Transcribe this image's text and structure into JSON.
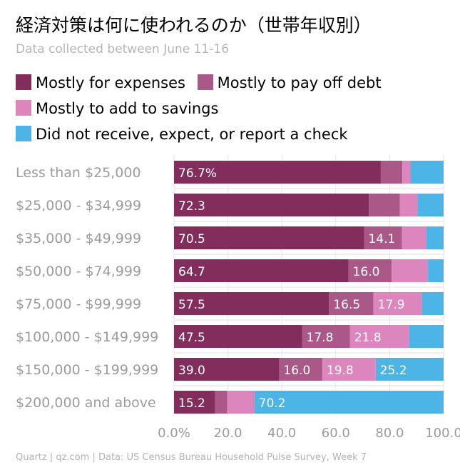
{
  "title": "経済対策は何に使われるのか（世帯年収別）",
  "subtitle": "Data collected between June 11-16",
  "footer": "Quartz | qz.com | Data: US Census Bureau Household Pulse Survey, Week 7",
  "chart_data": {
    "type": "bar",
    "orientation": "horizontal",
    "stacked": true,
    "title": "経済対策は何に使われるのか（世帯年収別）",
    "xlabel": "",
    "ylabel": "",
    "xlim": [
      0,
      100
    ],
    "x_ticks": [
      0,
      20,
      40,
      60,
      80,
      100
    ],
    "x_tick_labels": [
      "0.0%",
      "20.0",
      "40.0",
      "60.0",
      "80.0",
      "100.0"
    ],
    "grid": true,
    "legend_position": "top",
    "categories": [
      "Less than $25,000",
      "$25,000 - $34,999",
      "$35,000 - $49,999",
      "$50,000 - $74,999",
      "$75,000 - $99,999",
      "$100,000 - $149,999",
      "$150,000 - $199,999",
      "$200,000 and above"
    ],
    "series": [
      {
        "name": "Mostly for expenses",
        "color": "#822d5b",
        "values": [
          76.7,
          72.3,
          70.5,
          64.7,
          57.5,
          47.5,
          39.0,
          15.2
        ],
        "labels": [
          "76.7%",
          "72.3",
          "70.5",
          "64.7",
          "57.5",
          "47.5",
          "39.0",
          "15.2"
        ]
      },
      {
        "name": "Mostly to pay off debt",
        "color": "#aa5888",
        "values": [
          8.0,
          11.5,
          14.1,
          16.0,
          16.5,
          17.8,
          16.0,
          4.5
        ],
        "labels": [
          "",
          "",
          "14.1",
          "16.0",
          "16.5",
          "17.8",
          "16.0",
          ""
        ]
      },
      {
        "name": "Mostly to add to savings",
        "color": "#dd86bd",
        "values": [
          3.0,
          6.5,
          9.0,
          13.5,
          17.9,
          21.8,
          19.8,
          10.1
        ],
        "labels": [
          "",
          "",
          "",
          "",
          "17.9",
          "21.8",
          "19.8",
          ""
        ]
      },
      {
        "name": "Did not receive, expect, or report a check",
        "color": "#4db5e6",
        "values": [
          12.3,
          9.7,
          6.4,
          5.8,
          8.1,
          12.9,
          25.2,
          70.2
        ],
        "labels": [
          "",
          "",
          "",
          "",
          "",
          "",
          "25.2",
          "70.2"
        ]
      }
    ]
  }
}
